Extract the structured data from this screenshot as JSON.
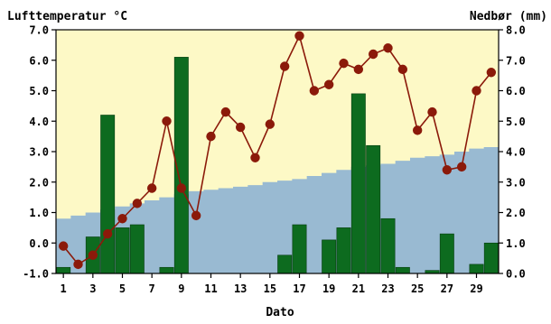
{
  "chart_data": {
    "type": "bar+line",
    "left_axis_label": "Lufttemperatur °C",
    "right_axis_label": "Nedbør (mm)",
    "xlabel": "Dato",
    "x_ticks": [
      "1",
      "3",
      "5",
      "7",
      "9",
      "11",
      "13",
      "15",
      "17",
      "19",
      "21",
      "23",
      "25",
      "27",
      "29"
    ],
    "left_ticks": [
      "-1.0",
      "0.0",
      "1.0",
      "2.0",
      "3.0",
      "4.0",
      "5.0",
      "6.0",
      "7.0"
    ],
    "right_ticks": [
      "0.0",
      "1.0",
      "2.0",
      "3.0",
      "4.0",
      "5.0",
      "6.0",
      "7.0",
      "8.0"
    ],
    "ylim_left": [
      -1.0,
      7.0
    ],
    "ylim_right": [
      0.0,
      8.0
    ],
    "days": [
      1,
      2,
      3,
      4,
      5,
      6,
      7,
      8,
      9,
      10,
      11,
      12,
      13,
      14,
      15,
      16,
      17,
      18,
      19,
      20,
      21,
      22,
      23,
      24,
      25,
      26,
      27,
      28,
      29,
      30
    ],
    "precipitation_mm": [
      0.2,
      0.0,
      1.2,
      5.2,
      1.5,
      1.6,
      0.0,
      0.2,
      7.1,
      0.0,
      0.0,
      0.0,
      0.0,
      0.0,
      0.0,
      0.6,
      1.6,
      0.0,
      1.1,
      1.5,
      5.9,
      4.2,
      1.8,
      0.2,
      0.0,
      0.1,
      1.3,
      0.0,
      0.3,
      1.0
    ],
    "temperature_c": [
      -0.1,
      -0.7,
      -0.4,
      0.3,
      0.8,
      1.3,
      1.8,
      4.0,
      1.8,
      0.9,
      3.5,
      4.3,
      3.8,
      2.8,
      3.9,
      5.8,
      6.8,
      5.0,
      5.2,
      5.9,
      5.7,
      6.2,
      6.4,
      5.7,
      3.7,
      4.3,
      2.4,
      2.5,
      5.0,
      5.6
    ],
    "normal_temperature_c": [
      0.8,
      0.9,
      1.0,
      1.1,
      1.2,
      1.3,
      1.4,
      1.5,
      1.6,
      1.7,
      1.75,
      1.8,
      1.85,
      1.9,
      2.0,
      2.05,
      2.1,
      2.2,
      2.3,
      2.4,
      2.5,
      2.55,
      2.6,
      2.7,
      2.8,
      2.85,
      2.9,
      3.0,
      3.1,
      3.15
    ],
    "colors": {
      "sky": "#fdf9c6",
      "normal_band": "#99bad2",
      "bars": "#0d6b1f",
      "bar_edge": "#073d10",
      "temp_line": "#8b1a0a",
      "axis": "#000000"
    }
  }
}
